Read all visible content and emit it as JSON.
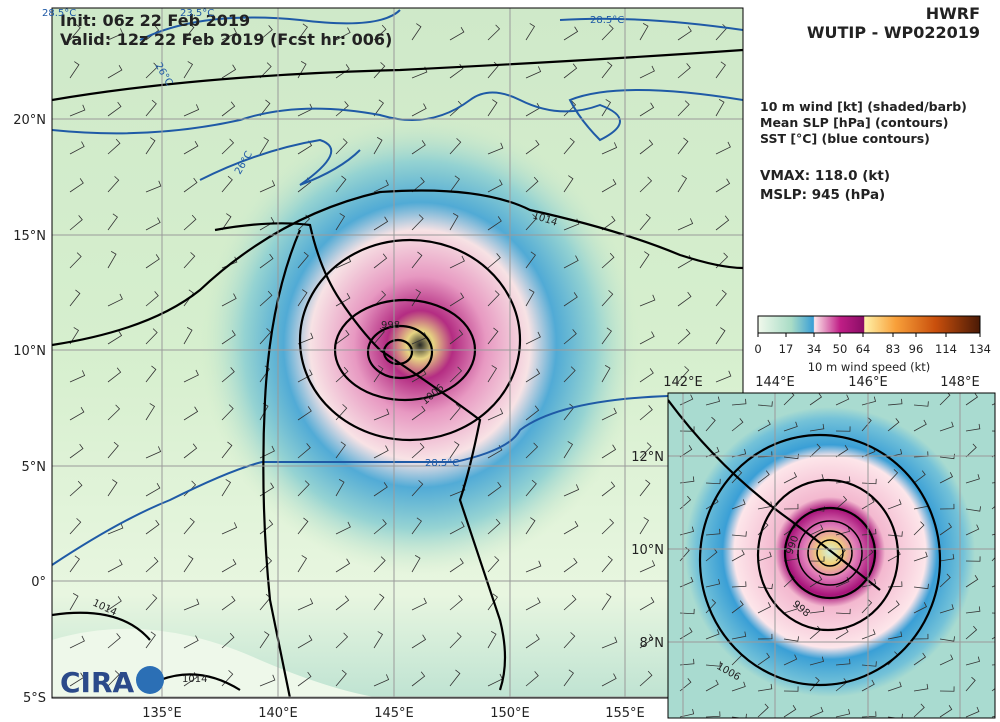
{
  "header": {
    "init": "Init:   06z 22 Feb 2019",
    "valid": "Valid: 12z 22 Feb 2019 (Fcst hr: 006)"
  },
  "title": {
    "model": "HWRF",
    "storm": "WUTIP - WP022019"
  },
  "legend_text": [
    "10 m wind [kt] (shaded/barb)",
    "Mean SLP [hPa] (contours)",
    "SST [°C] (blue contours)"
  ],
  "stats": [
    "VMAX: 118.0 (kt)",
    "MSLP:  945 (hPa)"
  ],
  "colorbar": {
    "ticks": [
      "0",
      "17",
      "34",
      "50",
      "64",
      "83",
      "96",
      "114",
      "134"
    ],
    "label": "10 m wind speed (kt)"
  },
  "main_map": {
    "lat_labels": [
      "20°N",
      "15°N",
      "10°N",
      "5°N",
      "0°",
      "5°S"
    ],
    "lon_labels": [
      "135°E",
      "140°E",
      "145°E",
      "150°E",
      "155°E"
    ],
    "slp_labels": [
      "1014",
      "1006",
      "998",
      "1014",
      "1014"
    ],
    "sst_labels": [
      "28.5°C",
      "28.5°C",
      "28.5°C",
      "26°C",
      "26°C",
      "23.5°C"
    ]
  },
  "inset": {
    "lon_labels": [
      "142°E",
      "144°E",
      "146°E",
      "148°E"
    ],
    "lat_labels": [
      "12°N",
      "10°N",
      "8°N"
    ],
    "slp_labels": [
      "998",
      "1006",
      "990"
    ]
  },
  "logo": "CIRA"
}
